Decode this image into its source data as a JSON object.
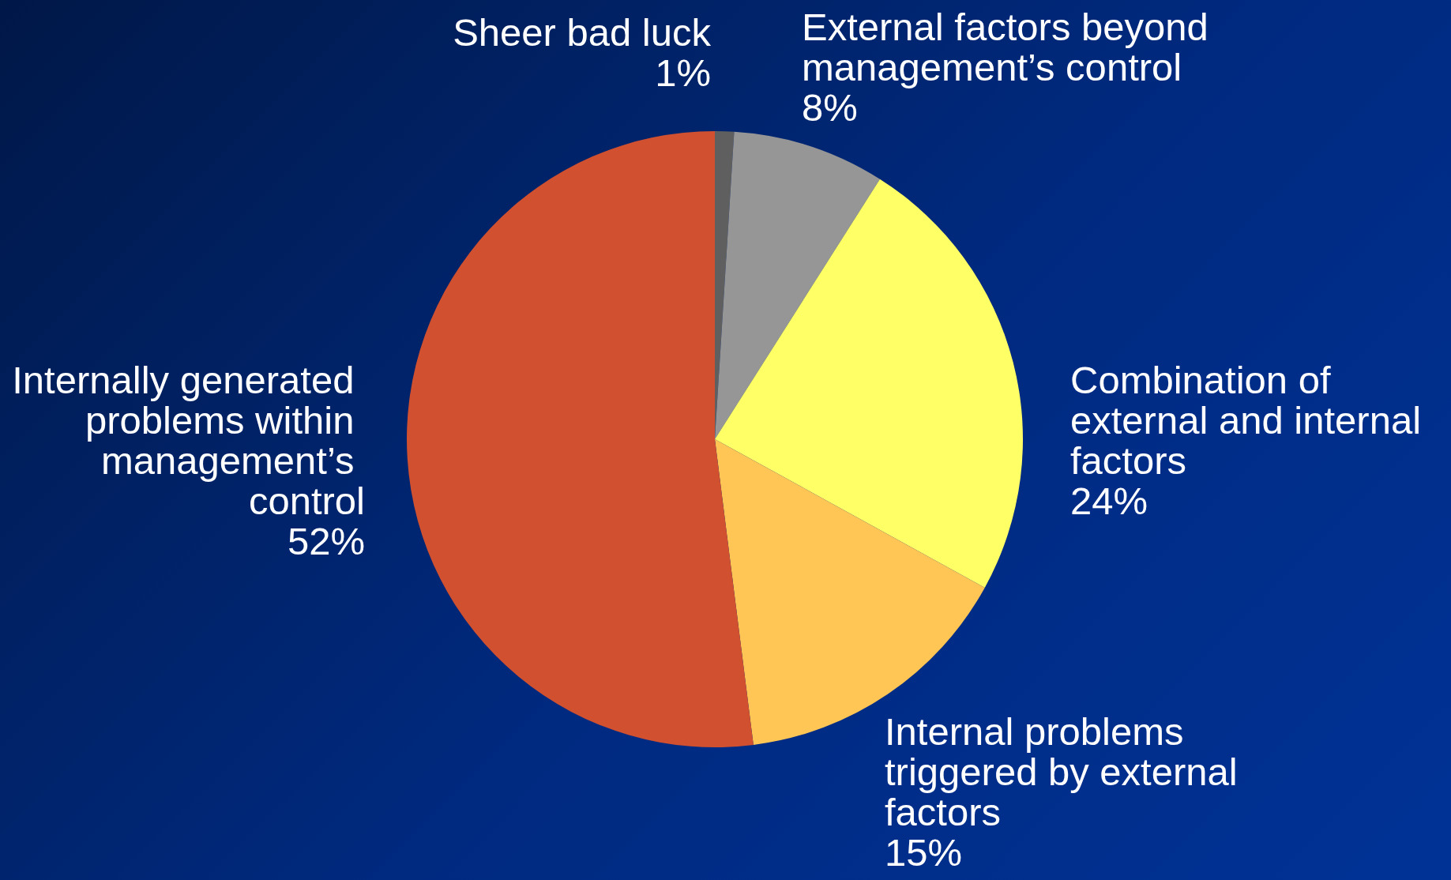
{
  "chart_data": {
    "type": "pie",
    "categories": [
      "Sheer bad luck",
      "External factors beyond management’s control",
      "Combination of external and internal factors",
      "Internal problems triggered by external factors",
      "Internally generated problems within management’s control"
    ],
    "values": [
      1,
      8,
      24,
      15,
      52
    ],
    "value_labels": [
      "1%",
      "8%",
      "24%",
      "15%",
      "52%"
    ],
    "colors": [
      "#5f5f5f",
      "#969696",
      "#ffff66",
      "#ffc655",
      "#d05030"
    ],
    "legend": false
  }
}
